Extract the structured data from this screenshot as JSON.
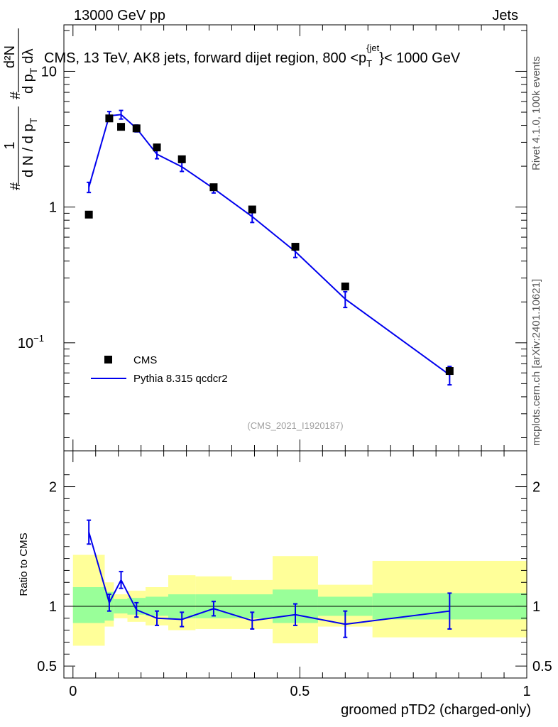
{
  "header": {
    "left": "13000 GeV pp",
    "right": "Jets"
  },
  "side_labels": {
    "rivet": "Rivet 4.1.0,  100k events",
    "mcplots": "mcplots.cern.ch [arXiv:2401.10621]"
  },
  "colors": {
    "data": "#000000",
    "mc": "#0000ee",
    "band_inner": "#99ff99",
    "band_outer": "#ffff99"
  },
  "chart_data": [
    {
      "type": "scatter",
      "panel": "main",
      "title": "CMS, 13 TeV, AK8 jets, forward dijet region, 800 <p_T^{jet}< 1000 GeV",
      "title_parts": {
        "pre": "CMS, 13 TeV, AK8 jets, forward dijet region, 800 <p",
        "sub": "T",
        "sup": "{jet",
        "post": "}< 1000 GeV"
      },
      "ylabel_parts": {
        "frac": "1",
        "num_hash": "#",
        "den": "d N / d p",
        "den_sub": "T",
        "second_num": "d²N",
        "second_den": "d p",
        "second_den_sub": "T",
        "second_den_tail": "dλ"
      },
      "ylabel": "# 1/(dN/dp_T) # d²N/(dp_T dλ)",
      "yscale": "log",
      "ylim": [
        0.016,
        22
      ],
      "xlim": [
        -0.02,
        1.0
      ],
      "yticks": [
        {
          "value": 0.1,
          "label_base": "10",
          "label_exp": "−1"
        },
        {
          "value": 1,
          "label": "1"
        },
        {
          "value": 10,
          "label": "10"
        }
      ],
      "watermark": "(CMS_2021_I1920187)",
      "legend_position": "lower-left",
      "series": [
        {
          "name": "CMS",
          "kind": "data",
          "x": [
            0.035,
            0.08,
            0.106,
            0.14,
            0.185,
            0.24,
            0.31,
            0.395,
            0.49,
            0.6,
            0.83
          ],
          "y": [
            0.88,
            4.5,
            3.9,
            3.8,
            2.75,
            2.25,
            1.4,
            0.96,
            0.51,
            0.26,
            0.062
          ]
        },
        {
          "name": "Pythia 8.315 qcdcr2",
          "kind": "mc",
          "x": [
            0.035,
            0.08,
            0.106,
            0.14,
            0.185,
            0.24,
            0.31,
            0.395,
            0.49,
            0.6,
            0.83
          ],
          "y": [
            1.4,
            4.7,
            4.8,
            3.8,
            2.45,
            1.98,
            1.37,
            0.85,
            0.47,
            0.21,
            0.058
          ],
          "yerr": [
            0.12,
            0.35,
            0.35,
            0.22,
            0.18,
            0.15,
            0.1,
            0.08,
            0.045,
            0.028,
            0.009
          ]
        }
      ]
    },
    {
      "type": "line",
      "panel": "ratio",
      "ylabel": "Ratio to CMS",
      "xlabel": "groomed pTD2 (charged-only)",
      "ylim": [
        0.4,
        2.3
      ],
      "xlim": [
        -0.02,
        1.0
      ],
      "yticks": [
        0.5,
        1,
        2
      ],
      "xticks": [
        0,
        0.5,
        1
      ],
      "reference_line": 1,
      "bands": {
        "edges": [
          0,
          0.07,
          0.09,
          0.12,
          0.16,
          0.21,
          0.27,
          0.35,
          0.44,
          0.54,
          0.66,
          1.0
        ],
        "inner_lo": [
          0.86,
          0.88,
          0.94,
          0.93,
          0.92,
          0.9,
          0.9,
          0.9,
          0.86,
          0.92,
          0.89
        ],
        "inner_hi": [
          1.16,
          1.12,
          1.06,
          1.07,
          1.08,
          1.1,
          1.1,
          1.1,
          1.14,
          1.08,
          1.11
        ],
        "outer_lo": [
          0.67,
          0.83,
          0.9,
          0.87,
          0.84,
          0.8,
          0.81,
          0.81,
          0.69,
          0.83,
          0.74
        ],
        "outer_hi": [
          1.43,
          1.2,
          1.1,
          1.13,
          1.16,
          1.26,
          1.25,
          1.22,
          1.42,
          1.18,
          1.38
        ]
      },
      "series": [
        {
          "name": "Pythia 8.315 qcdcr2 / CMS",
          "x": [
            0.035,
            0.08,
            0.106,
            0.14,
            0.185,
            0.24,
            0.31,
            0.395,
            0.49,
            0.6,
            0.83
          ],
          "y": [
            1.62,
            1.03,
            1.22,
            0.97,
            0.9,
            0.89,
            0.98,
            0.88,
            0.93,
            0.85,
            0.96
          ],
          "yerr": [
            0.1,
            0.07,
            0.07,
            0.06,
            0.06,
            0.06,
            0.06,
            0.07,
            0.09,
            0.11,
            0.15
          ]
        }
      ]
    }
  ]
}
